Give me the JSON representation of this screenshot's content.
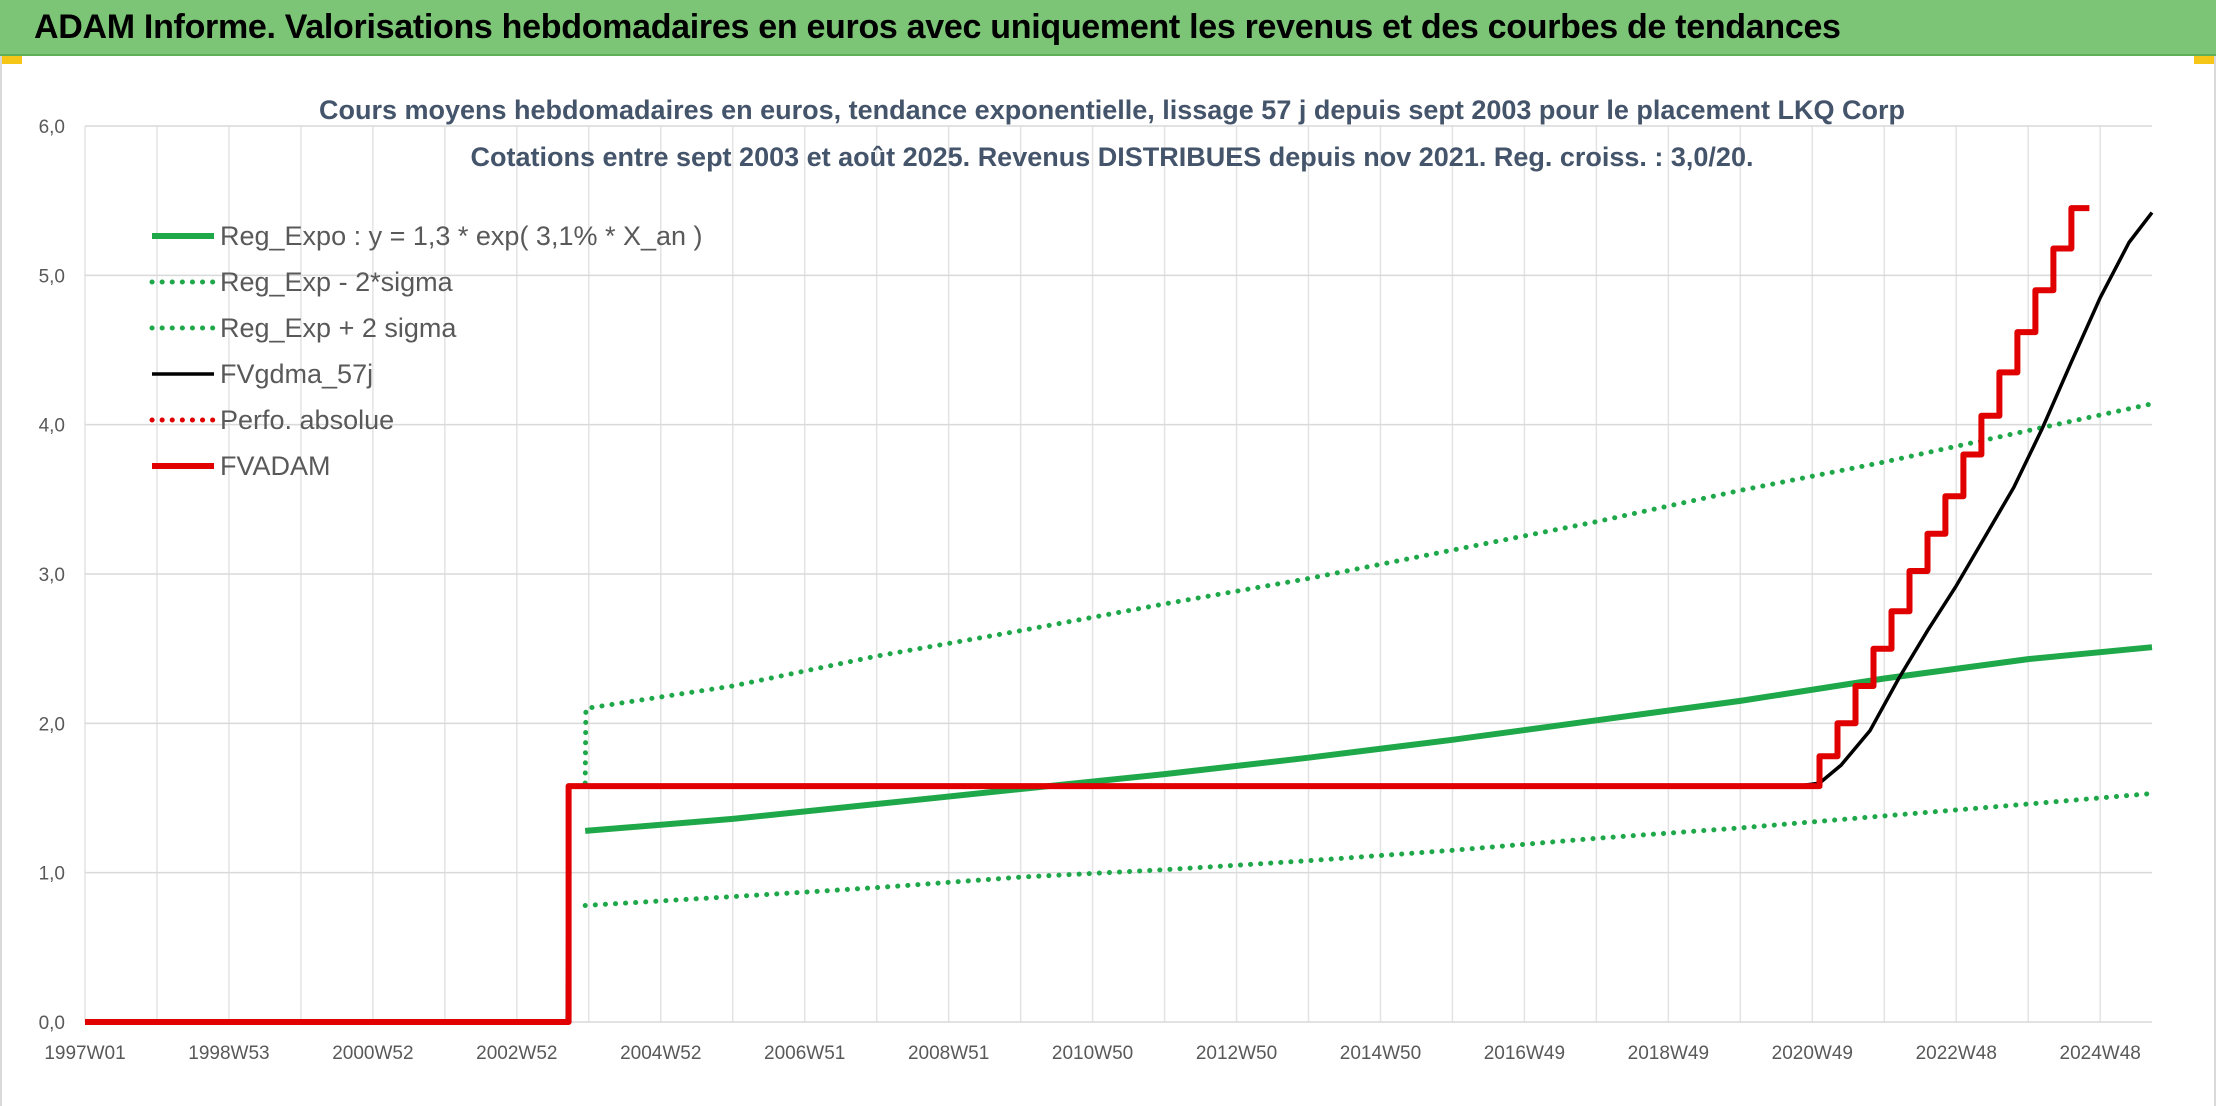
{
  "header": {
    "title": "ADAM Informe. Valorisations hebdomadaires en euros avec uniquement les revenus et des courbes de tendances"
  },
  "chart_data": {
    "type": "line",
    "title": "Cours moyens hebdomadaires en euros, tendance exponentielle, lissage 57 j depuis sept 2003 pour le placement LKQ Corp",
    "subtitle": "Cotations entre sept 2003 et août 2025. Revenus DISTRIBUES depuis nov 2021. Reg. croiss. : 3,0/20.",
    "x_tick_labels": [
      "1997W01",
      "1998W53",
      "2000W52",
      "2002W52",
      "2004W52",
      "2006W51",
      "2008W51",
      "2010W50",
      "2012W50",
      "2014W50",
      "2016W49",
      "2018W49",
      "2020W49",
      "2022W48",
      "2024W48"
    ],
    "x_tick_years": [
      1997.0,
      1999.0,
      2001.0,
      2003.0,
      2005.0,
      2007.0,
      2009.0,
      2011.0,
      2013.0,
      2015.0,
      2017.0,
      2019.0,
      2021.0,
      2023.0,
      2025.0
    ],
    "x_range": [
      1997.0,
      2025.72
    ],
    "y_tick_labels": [
      "0,0",
      "1,0",
      "2,0",
      "3,0",
      "4,0",
      "5,0",
      "6,0"
    ],
    "ylim": [
      0,
      6
    ],
    "grid": true,
    "legend_position": "top-left",
    "series": [
      {
        "name": "Reg_Expo : y = 1,3 * exp( 3,1% *  X_an )",
        "color": "#1fa84a",
        "style": "solid-thick",
        "points": [
          [
            2003.95,
            1.28
          ],
          [
            2006.0,
            1.36
          ],
          [
            2008.0,
            1.46
          ],
          [
            2010.0,
            1.56
          ],
          [
            2012.0,
            1.66
          ],
          [
            2014.0,
            1.77
          ],
          [
            2016.0,
            1.89
          ],
          [
            2018.0,
            2.02
          ],
          [
            2020.0,
            2.15
          ],
          [
            2022.0,
            2.3
          ],
          [
            2024.0,
            2.43
          ],
          [
            2025.72,
            2.51
          ]
        ]
      },
      {
        "name": "Reg_Exp - 2*sigma",
        "color": "#1fa84a",
        "style": "dotted",
        "points": [
          [
            2003.95,
            0.78
          ],
          [
            2006.0,
            0.84
          ],
          [
            2008.0,
            0.9
          ],
          [
            2010.0,
            0.97
          ],
          [
            2012.0,
            1.02
          ],
          [
            2014.0,
            1.08
          ],
          [
            2016.0,
            1.15
          ],
          [
            2018.0,
            1.23
          ],
          [
            2020.0,
            1.3
          ],
          [
            2022.0,
            1.38
          ],
          [
            2024.0,
            1.46
          ],
          [
            2025.72,
            1.53
          ]
        ]
      },
      {
        "name": "Reg_Exp + 2 sigma",
        "color": "#1fa84a",
        "style": "dotted",
        "points": [
          [
            2003.95,
            1.6
          ],
          [
            2003.96,
            2.1
          ],
          [
            2006.0,
            2.25
          ],
          [
            2008.0,
            2.45
          ],
          [
            2010.0,
            2.62
          ],
          [
            2012.0,
            2.8
          ],
          [
            2014.0,
            2.97
          ],
          [
            2016.0,
            3.16
          ],
          [
            2018.0,
            3.35
          ],
          [
            2020.0,
            3.56
          ],
          [
            2022.0,
            3.75
          ],
          [
            2024.0,
            3.96
          ],
          [
            2025.72,
            4.14
          ]
        ]
      },
      {
        "name": "FVgdma_57j",
        "color": "#000000",
        "style": "solid",
        "points": [
          [
            1997.0,
            0.0
          ],
          [
            2003.7,
            0.0
          ],
          [
            2003.72,
            1.58
          ],
          [
            2020.8,
            1.58
          ],
          [
            2021.1,
            1.6
          ],
          [
            2021.4,
            1.72
          ],
          [
            2021.8,
            1.95
          ],
          [
            2022.2,
            2.3
          ],
          [
            2022.6,
            2.62
          ],
          [
            2023.0,
            2.92
          ],
          [
            2023.4,
            3.25
          ],
          [
            2023.8,
            3.58
          ],
          [
            2024.2,
            3.98
          ],
          [
            2024.6,
            4.42
          ],
          [
            2025.0,
            4.85
          ],
          [
            2025.4,
            5.22
          ],
          [
            2025.72,
            5.42
          ]
        ]
      },
      {
        "name": "Perfo. absolue",
        "color": "#e00000",
        "style": "dotted",
        "points": []
      },
      {
        "name": "FVADAM",
        "color": "#e00000",
        "style": "solid-thick",
        "points": [
          [
            1997.0,
            0.0
          ],
          [
            2003.72,
            0.0
          ],
          [
            2003.72,
            1.58
          ],
          [
            2021.1,
            1.58
          ],
          [
            2021.1,
            1.78
          ],
          [
            2021.35,
            1.78
          ],
          [
            2021.35,
            2.0
          ],
          [
            2021.6,
            2.0
          ],
          [
            2021.6,
            2.25
          ],
          [
            2021.85,
            2.25
          ],
          [
            2021.85,
            2.5
          ],
          [
            2022.1,
            2.5
          ],
          [
            2022.1,
            2.75
          ],
          [
            2022.35,
            2.75
          ],
          [
            2022.35,
            3.02
          ],
          [
            2022.6,
            3.02
          ],
          [
            2022.6,
            3.27
          ],
          [
            2022.85,
            3.27
          ],
          [
            2022.85,
            3.52
          ],
          [
            2023.1,
            3.52
          ],
          [
            2023.1,
            3.8
          ],
          [
            2023.35,
            3.8
          ],
          [
            2023.35,
            4.06
          ],
          [
            2023.6,
            4.06
          ],
          [
            2023.6,
            4.35
          ],
          [
            2023.85,
            4.35
          ],
          [
            2023.85,
            4.62
          ],
          [
            2024.1,
            4.62
          ],
          [
            2024.1,
            4.9
          ],
          [
            2024.35,
            4.9
          ],
          [
            2024.35,
            5.18
          ],
          [
            2024.6,
            5.18
          ],
          [
            2024.6,
            5.45
          ],
          [
            2024.85,
            5.45
          ]
        ]
      }
    ]
  }
}
